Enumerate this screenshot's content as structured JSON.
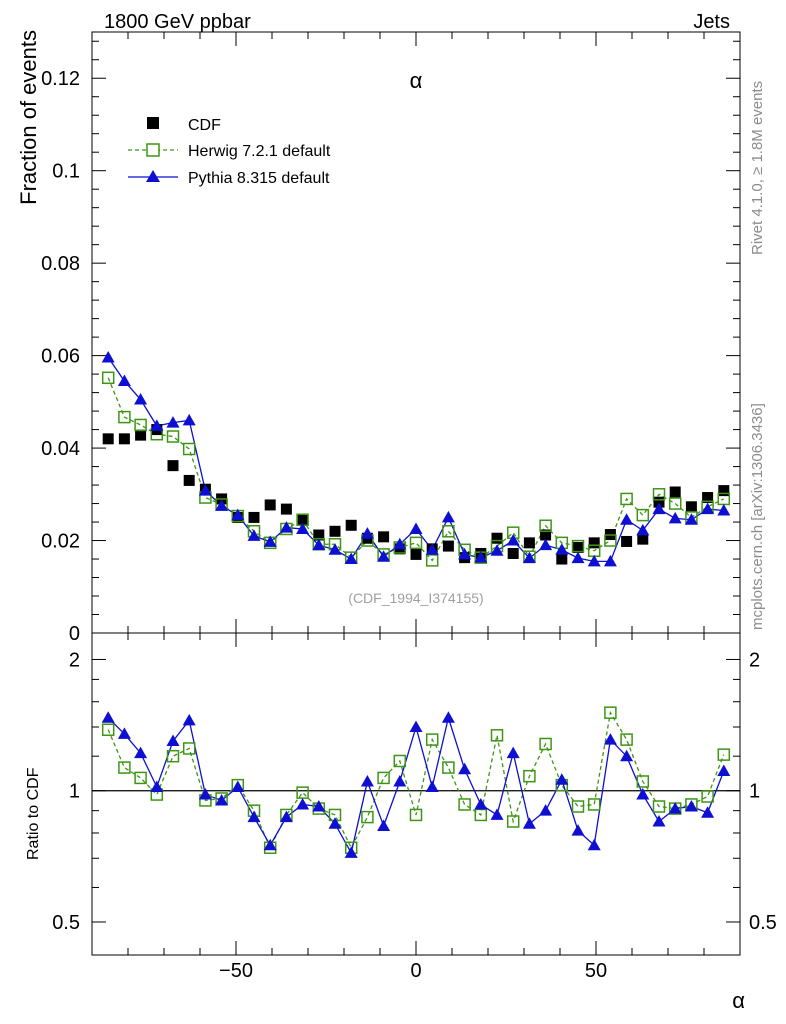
{
  "header": {
    "left": "1800 GeV ppbar",
    "right": "Jets",
    "side_top": "Rivet 4.1.0, ≥ 1.8M events",
    "side_bottom": "mcplots.cern.ch [arXiv:1306.3436]"
  },
  "chart_data": [
    {
      "type": "scatter",
      "title": "α",
      "xlabel": "",
      "ylabel": "Fraction of events",
      "xlim": [
        -90,
        90
      ],
      "ylim": [
        0,
        0.13
      ],
      "yticks": [
        0.02,
        0.04,
        0.06,
        0.08,
        0.1,
        0.12
      ],
      "ytick_labels": [
        "0.02",
        "0.04",
        "0.06",
        "0.08",
        "0.1",
        "0.12"
      ],
      "y_zero_label": "0",
      "annotation": "(CDF_1994_I374155)",
      "legend": [
        "CDF",
        "Herwig 7.2.1 default",
        "Pythia 8.315 default"
      ],
      "x": [
        -85.5,
        -81,
        -76.5,
        -72,
        -67.5,
        -63,
        -58.5,
        -54,
        -49.5,
        -45,
        -40.5,
        -36,
        -31.5,
        -27,
        -22.5,
        -18,
        -13.5,
        -9,
        -4.5,
        0,
        4.5,
        9,
        13.5,
        18,
        22.5,
        27,
        31.5,
        36,
        40.5,
        45,
        49.5,
        54,
        58.5,
        63,
        67.5,
        72,
        76.5,
        81,
        85.5
      ],
      "series": [
        {
          "name": "CDF",
          "marker": "filled-square",
          "color": "#000000",
          "values": [
            0.042,
            0.042,
            0.0428,
            0.044,
            0.0362,
            0.033,
            0.0311,
            0.029,
            0.025,
            0.025,
            0.0277,
            0.0268,
            0.0245,
            0.0212,
            0.022,
            0.0233,
            0.0205,
            0.0208,
            0.0182,
            0.017,
            0.0182,
            0.0188,
            0.0163,
            0.0172,
            0.0205,
            0.0172,
            0.0195,
            0.0212,
            0.016,
            0.0185,
            0.0195,
            0.0213,
            0.0198,
            0.0203,
            0.0283,
            0.0305,
            0.0273,
            0.0293,
            0.0308
          ]
        },
        {
          "name": "Herwig 7.2.1 default",
          "marker": "open-square-dashed",
          "color": "#3c9614",
          "values": [
            0.0552,
            0.0467,
            0.045,
            0.043,
            0.0425,
            0.0398,
            0.0293,
            0.0278,
            0.0253,
            0.022,
            0.0195,
            0.0225,
            0.0245,
            0.0192,
            0.0192,
            0.0163,
            0.02,
            0.017,
            0.0185,
            0.0195,
            0.0157,
            0.022,
            0.018,
            0.0163,
            0.0188,
            0.0217,
            0.0165,
            0.0232,
            0.0195,
            0.0188,
            0.0178,
            0.02,
            0.029,
            0.0255,
            0.03,
            0.028,
            0.025,
            0.0273,
            0.029
          ]
        },
        {
          "name": "Pythia 8.315 default",
          "marker": "filled-triangle-solid",
          "color": "#0f0fd2",
          "values": [
            0.0596,
            0.0545,
            0.0505,
            0.0448,
            0.0455,
            0.046,
            0.0308,
            0.0275,
            0.0255,
            0.021,
            0.0197,
            0.0228,
            0.0225,
            0.019,
            0.018,
            0.016,
            0.0215,
            0.0165,
            0.0192,
            0.0225,
            0.018,
            0.025,
            0.017,
            0.0163,
            0.0178,
            0.02,
            0.0162,
            0.019,
            0.018,
            0.0162,
            0.0155,
            0.0155,
            0.0245,
            0.0222,
            0.0268,
            0.0248,
            0.0245,
            0.0268,
            0.0265
          ]
        }
      ]
    },
    {
      "type": "scatter",
      "title": "",
      "xlabel": "α",
      "ylabel": "Ratio to CDF",
      "xlim": [
        -90,
        90
      ],
      "ylim": [
        0.42,
        2.3
      ],
      "log_y": true,
      "yticks": [
        0.5,
        1,
        2
      ],
      "ytick_labels": [
        "0.5",
        "1",
        "2"
      ],
      "xticks": [
        -50,
        0,
        50
      ],
      "xtick_labels": [
        "−50",
        "0",
        "50"
      ],
      "reference_line": 1,
      "x": [
        -85.5,
        -81,
        -76.5,
        -72,
        -67.5,
        -63,
        -58.5,
        -54,
        -49.5,
        -45,
        -40.5,
        -36,
        -31.5,
        -27,
        -22.5,
        -18,
        -13.5,
        -9,
        -4.5,
        0,
        4.5,
        9,
        13.5,
        18,
        22.5,
        27,
        31.5,
        36,
        40.5,
        45,
        49.5,
        54,
        58.5,
        63,
        67.5,
        72,
        76.5,
        81,
        85.5
      ],
      "series": [
        {
          "name": "Herwig 7.2.1 default",
          "color": "#3c9614",
          "values": [
            1.38,
            1.13,
            1.07,
            0.98,
            1.2,
            1.25,
            0.95,
            0.96,
            1.03,
            0.9,
            0.74,
            0.88,
            0.99,
            0.91,
            0.88,
            0.74,
            0.87,
            1.07,
            1.17,
            0.88,
            1.31,
            1.13,
            0.93,
            0.88,
            1.34,
            0.85,
            1.08,
            1.28,
            1.03,
            0.92,
            0.93,
            1.51,
            1.31,
            1.05,
            0.92,
            0.91,
            0.93,
            0.97,
            1.21
          ]
        },
        {
          "name": "Pythia 8.315 default",
          "color": "#0f0fd2",
          "values": [
            1.47,
            1.35,
            1.22,
            1.02,
            1.3,
            1.45,
            0.98,
            0.95,
            1.02,
            0.87,
            0.75,
            0.87,
            0.93,
            0.92,
            0.84,
            0.72,
            1.05,
            0.83,
            1.05,
            1.4,
            1.02,
            1.47,
            1.12,
            0.93,
            0.88,
            1.22,
            0.84,
            0.9,
            1.06,
            0.81,
            0.75,
            1.31,
            1.2,
            0.98,
            0.85,
            0.91,
            0.92,
            0.89,
            1.11
          ]
        }
      ]
    }
  ]
}
